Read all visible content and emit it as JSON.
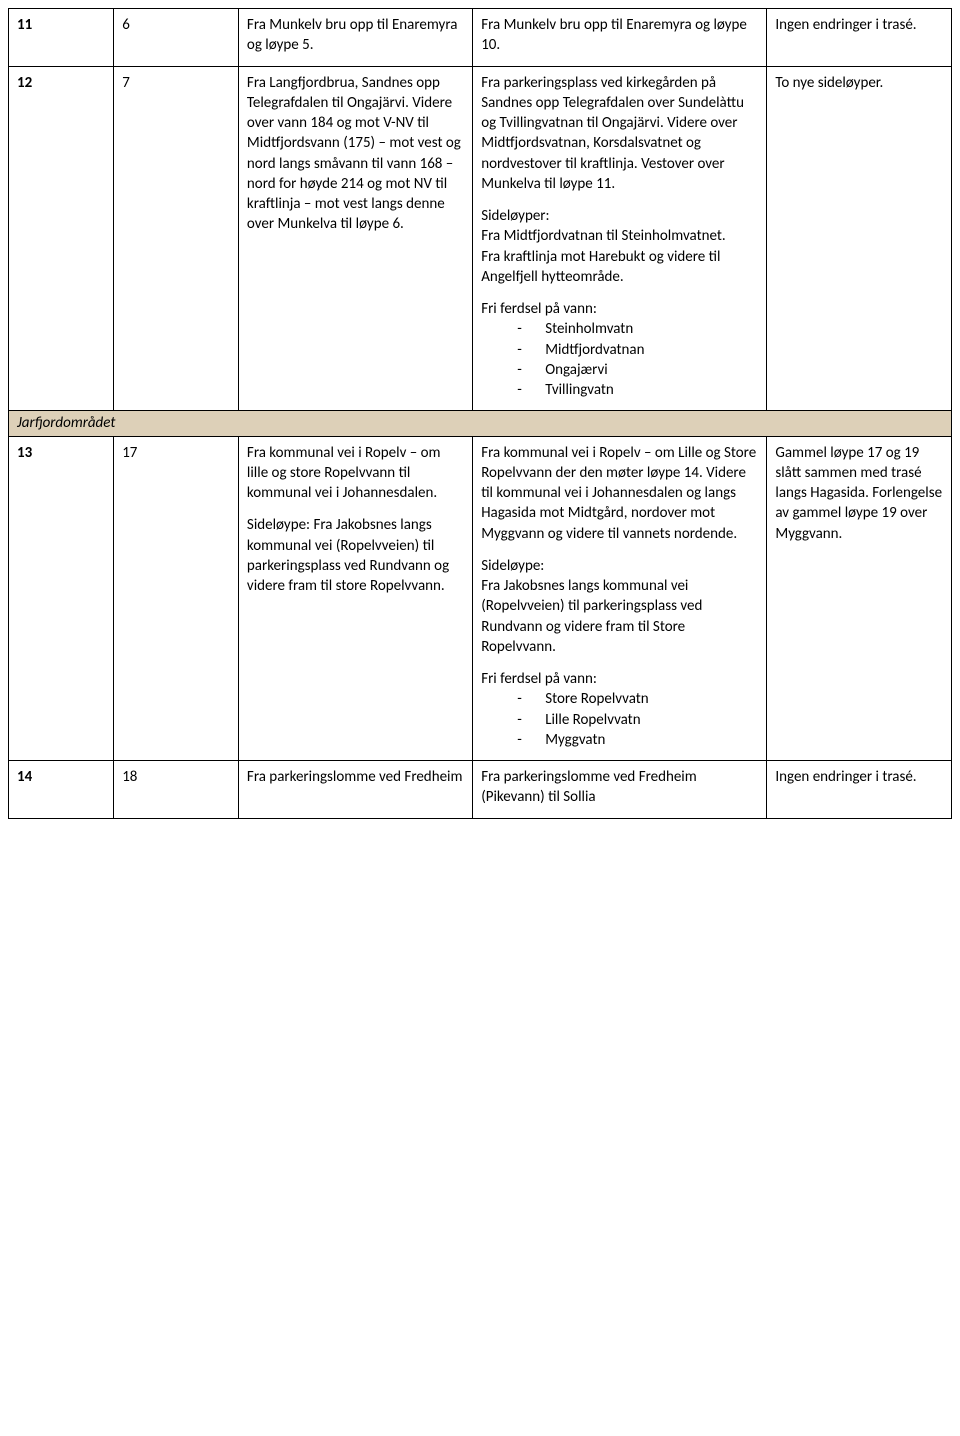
{
  "section_header": "Jarfjordområdet",
  "rows": [
    {
      "c1": "11",
      "c2": "6",
      "c3_paras": [
        "Fra Munkelv bru opp til Enaremyra og løype 5."
      ],
      "c4_paras": [
        "Fra Munkelv bru opp til Enaremyra og løype 10."
      ],
      "c5_paras": [
        "Ingen endringer i trasé."
      ]
    },
    {
      "c1": "12",
      "c2": "7",
      "c3_paras": [
        "Fra Langfjordbrua, Sandnes opp Telegrafdalen til Ongajärvi. Videre over vann 184 og mot V-NV til Midtfjordsvann (175) – mot vest og nord langs småvann til vann 168 – nord for høyde 214 og mot NV til kraftlinja – mot vest langs denne over Munkelva til løype 6."
      ],
      "c4_paras": [
        "Fra parkeringsplass ved kirkegården på Sandnes opp Telegrafdalen over Sundelàttu og Tvillingvatnan til Ongajärvi. Videre over Midtfjordsvatnan, Korsdalsvatnet og nordvestover til kraftlinja. Vestover over Munkelva til løype 11.",
        "Sideløyper:\nFra Midtfjordvatnan til Steinholmvatnet.\nFra kraftlinja mot Harebukt og videre til Angelfjell hytteområde.",
        "Fri ferdsel på vann:"
      ],
      "c4_list": [
        "Steinholmvatn",
        "Midtfjordvatnan",
        "Ongajærvi",
        "Tvillingvatn"
      ],
      "c5_paras": [
        "To nye sideløyper."
      ]
    },
    {
      "c1": "13",
      "c2": "17",
      "c3_paras": [
        "Fra kommunal vei i Ropelv – om lille og store Ropelvvann til kommunal vei i Johannesdalen.",
        "Sideløype: Fra Jakobsnes langs kommunal vei (Ropelvveien) til parkeringsplass ved Rundvann og videre fram til store Ropelvvann."
      ],
      "c4_paras": [
        "Fra kommunal vei i Ropelv – om Lille og Store Ropelvvann der den møter løype 14. Videre til kommunal vei i Johannesdalen og langs Hagasida mot Midtgård, nordover mot Myggvann og videre til vannets nordende.",
        "Sideløype:\nFra Jakobsnes langs kommunal vei (Ropelvveien) til parkeringsplass ved Rundvann og videre fram til Store Ropelvvann.",
        "Fri ferdsel på vann:"
      ],
      "c4_list": [
        "Store Ropelvvatn",
        "Lille Ropelvvatn",
        "Myggvatn"
      ],
      "c5_paras": [
        "Gammel løype 17 og 19 slått sammen med trasé langs Hagasida. Forlengelse av gammel løype 19 over Myggvann."
      ]
    },
    {
      "c1": "14",
      "c2": "18",
      "c3_paras": [
        "Fra parkeringslomme ved Fredheim"
      ],
      "c4_paras": [
        "Fra parkeringslomme ved Fredheim (Pikevann) til Sollia"
      ],
      "c5_paras": [
        "Ingen endringer i trasé."
      ]
    }
  ]
}
